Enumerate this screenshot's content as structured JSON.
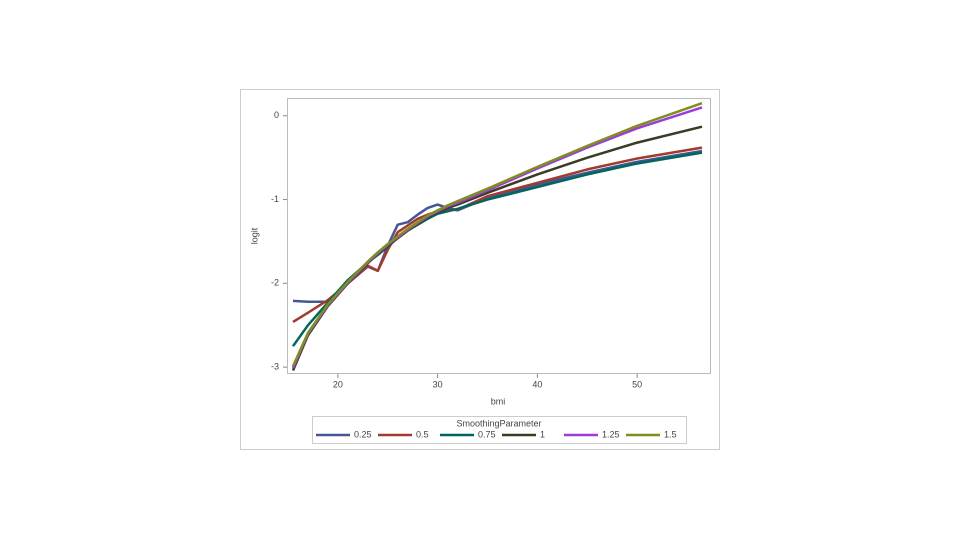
{
  "chart_data": {
    "type": "line",
    "x_label": "bmi",
    "y_label": "logit",
    "legend_title": "SmoothingParameter",
    "x": [
      15.5,
      17,
      19,
      21,
      23,
      24,
      25,
      26,
      27,
      28,
      29,
      30,
      31,
      32,
      35,
      40,
      45,
      50,
      56.5
    ],
    "series": [
      {
        "name": "0.25",
        "color": "#445694",
        "values": [
          -2.21,
          -2.22,
          -2.22,
          -2.0,
          -1.8,
          -1.85,
          -1.55,
          -1.3,
          -1.27,
          -1.18,
          -1.1,
          -1.06,
          -1.1,
          -1.13,
          -0.98,
          -0.82,
          -0.68,
          -0.55,
          -0.42
        ]
      },
      {
        "name": "0.5",
        "color": "#a23a2e",
        "values": [
          -2.46,
          -2.35,
          -2.2,
          -2.0,
          -1.79,
          -1.85,
          -1.6,
          -1.39,
          -1.31,
          -1.23,
          -1.18,
          -1.14,
          -1.13,
          -1.12,
          -0.96,
          -0.8,
          -0.64,
          -0.51,
          -0.38
        ]
      },
      {
        "name": "0.75",
        "color": "#01665e",
        "values": [
          -2.75,
          -2.5,
          -2.23,
          -1.96,
          -1.75,
          -1.66,
          -1.56,
          -1.46,
          -1.37,
          -1.3,
          -1.23,
          -1.17,
          -1.14,
          -1.11,
          -1.0,
          -0.85,
          -0.7,
          -0.57,
          -0.44
        ]
      },
      {
        "name": "1",
        "color": "#3d3b25",
        "values": [
          -3.04,
          -2.62,
          -2.27,
          -2.0,
          -1.76,
          -1.65,
          -1.55,
          -1.46,
          -1.37,
          -1.29,
          -1.21,
          -1.15,
          -1.1,
          -1.06,
          -0.92,
          -0.7,
          -0.5,
          -0.32,
          -0.13
        ]
      },
      {
        "name": "1.25",
        "color": "#9d3cdb",
        "values": [
          -3.01,
          -2.6,
          -2.26,
          -1.99,
          -1.75,
          -1.64,
          -1.54,
          -1.45,
          -1.36,
          -1.28,
          -1.2,
          -1.14,
          -1.08,
          -1.04,
          -0.89,
          -0.63,
          -0.38,
          -0.15,
          0.1
        ]
      },
      {
        "name": "1.5",
        "color": "#7f8e1f",
        "values": [
          -2.99,
          -2.59,
          -2.25,
          -1.98,
          -1.74,
          -1.63,
          -1.53,
          -1.44,
          -1.35,
          -1.27,
          -1.19,
          -1.13,
          -1.07,
          -1.02,
          -0.87,
          -0.61,
          -0.36,
          -0.12,
          0.15
        ]
      }
    ],
    "xlim": [
      15,
      57.3
    ],
    "xticks": [
      20,
      30,
      40,
      50
    ],
    "ylim": [
      -3.07,
      0.2
    ],
    "yticks": [
      0,
      -1,
      -2,
      -3
    ]
  }
}
